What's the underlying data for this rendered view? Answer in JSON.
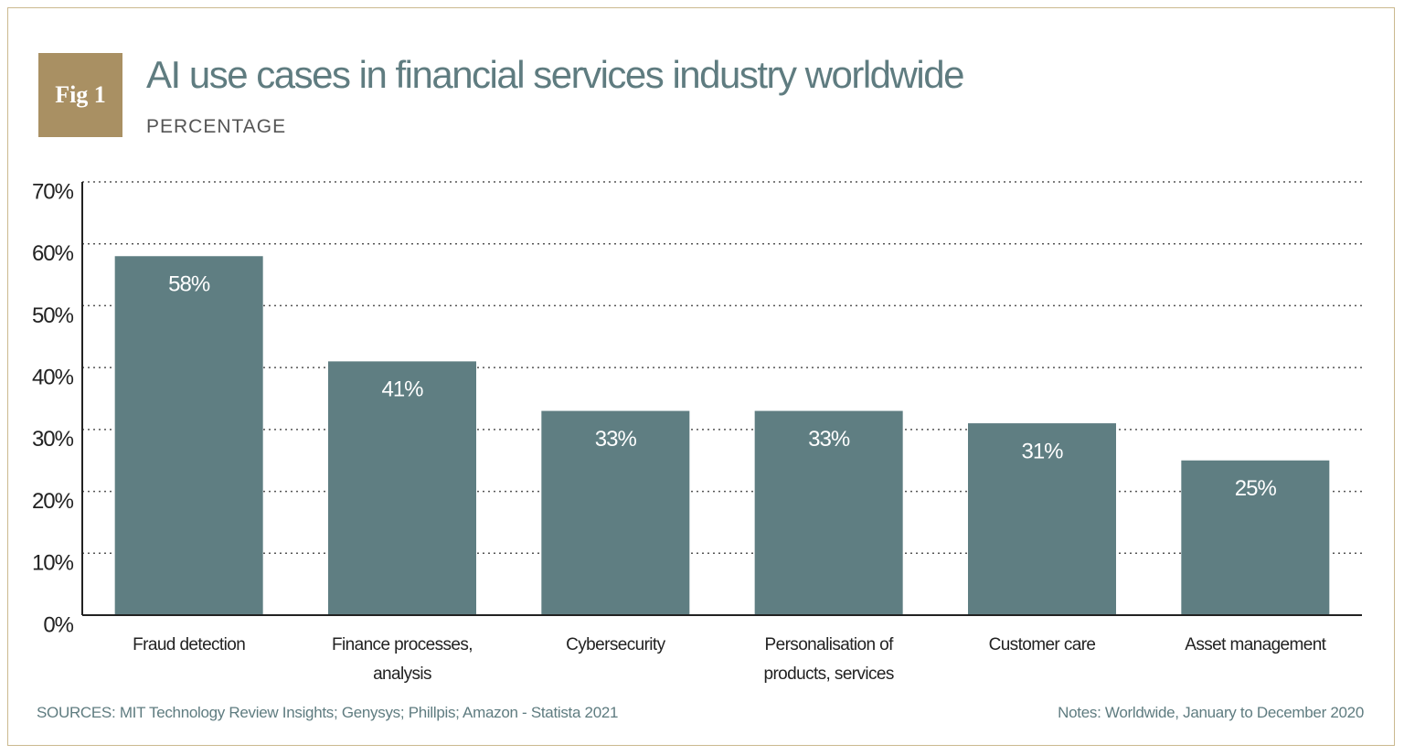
{
  "chart_data": {
    "type": "bar",
    "figure_label": "Fig 1",
    "title": "AI use cases in financial services industry worldwide",
    "subtitle": "PERCENTAGE",
    "categories": [
      "Fraud detection",
      "Finance processes, analysis",
      "Cybersecurity",
      "Personalisation of products, services",
      "Customer care",
      "Asset management"
    ],
    "values": [
      58,
      41,
      33,
      33,
      31,
      25
    ],
    "value_labels": [
      "58%",
      "41%",
      "33%",
      "33%",
      "31%",
      "25%"
    ],
    "color": "#5f7e82",
    "ylim": [
      0,
      70
    ],
    "yticks": [
      {
        "value": 0,
        "label": "0%"
      },
      {
        "value": 10,
        "label": "10%"
      },
      {
        "value": 20,
        "label": "20%"
      },
      {
        "value": 30,
        "label": "30%"
      },
      {
        "value": 40,
        "label": "40%"
      },
      {
        "value": 50,
        "label": "50%"
      },
      {
        "value": 60,
        "label": "60%"
      },
      {
        "value": 70,
        "label": "70%"
      }
    ],
    "grid": true,
    "source": "SOURCES: MIT Technology Review Insights; Genysys; Phillpis; Amazon - Statista 2021",
    "notes": "Notes: Worldwide, January to December 2020"
  }
}
